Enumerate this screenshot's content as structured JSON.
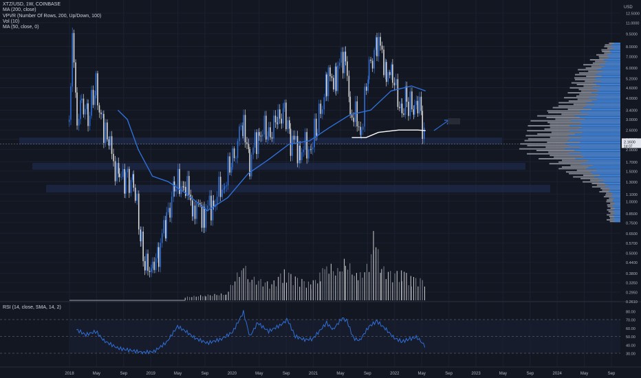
{
  "chart_data": {
    "type": "candlestick",
    "symbol": "XTZ/USD",
    "interval": "1W",
    "exchange": "COINBASE",
    "header": "XTZ/USD, 1W, COINBASE",
    "indicators": [
      "MA (200, close)",
      "VPVR (Number Of Rows, 200, Up/Down, 100)",
      "Vol (10)",
      "MA (50, close, 0)"
    ],
    "currency_label": "USD",
    "scale": "log",
    "price_axis_labels": [
      "12.5000",
      "11.0000",
      "9.5000",
      "8.0000",
      "7.0000",
      "6.0000",
      "5.2000",
      "4.6000",
      "4.0000",
      "3.4000",
      "3.0000",
      "2.6000",
      "2.3000",
      "2.0000",
      "1.7000",
      "1.5000",
      "1.3000",
      "1.1000",
      "1.0000",
      "0.8500",
      "0.7500",
      "0.6500",
      "0.5700",
      "0.5000",
      "0.4400",
      "0.3800",
      "0.3350",
      "0.2950",
      "0.2610"
    ],
    "last_price_label": "2.1600",
    "last_price_sublabel": "1d 07",
    "time_axis_labels": [
      "2018",
      "May",
      "Sep",
      "2019",
      "May",
      "Sep",
      "2020",
      "May",
      "Sep",
      "2021",
      "May",
      "Sep",
      "2022",
      "May",
      "Sep",
      "2023",
      "May",
      "Sep",
      "2024",
      "May",
      "Sep"
    ],
    "rsi_label": "RSI (14, close, SMA, 14, 2)",
    "rsi_axis_labels": [
      "80.00",
      "70.00",
      "60.00",
      "50.00",
      "40.00",
      "30.00"
    ],
    "rsi_levels": [
      70,
      50,
      30
    ],
    "price_series": [
      [
        "2017-12-31",
        2.6
      ],
      [
        "2018-01-07",
        4.5
      ],
      [
        "2018-01-14",
        11.0
      ],
      [
        "2018-01-21",
        6.0
      ],
      [
        "2018-02-04",
        3.0
      ],
      [
        "2018-02-25",
        4.0
      ],
      [
        "2018-03-25",
        3.0
      ],
      [
        "2018-04-29",
        4.6
      ],
      [
        "2018-06-03",
        2.6
      ],
      [
        "2018-07-01",
        2.0
      ],
      [
        "2018-08-12",
        1.3
      ],
      [
        "2018-09-09",
        1.4
      ],
      [
        "2018-10-14",
        1.3
      ],
      [
        "2018-11-18",
        0.55
      ],
      [
        "2018-12-09",
        0.4
      ],
      [
        "2019-01-06",
        0.44
      ],
      [
        "2019-02-03",
        0.5
      ],
      [
        "2019-03-10",
        0.8
      ],
      [
        "2019-04-14",
        1.2
      ],
      [
        "2019-05-26",
        1.3
      ],
      [
        "2019-07-07",
        0.95
      ],
      [
        "2019-08-25",
        0.85
      ],
      [
        "2019-10-06",
        1.0
      ],
      [
        "2019-11-24",
        1.3
      ],
      [
        "2019-12-29",
        1.7
      ],
      [
        "2020-02-16",
        3.0
      ],
      [
        "2020-03-15",
        1.7
      ],
      [
        "2020-04-26",
        2.6
      ],
      [
        "2020-06-07",
        2.5
      ],
      [
        "2020-07-19",
        2.9
      ],
      [
        "2020-08-16",
        3.6
      ],
      [
        "2020-09-13",
        2.3
      ],
      [
        "2020-10-25",
        2.0
      ],
      [
        "2020-12-13",
        2.1
      ],
      [
        "2021-01-10",
        2.7
      ],
      [
        "2021-02-21",
        5.0
      ],
      [
        "2021-04-04",
        5.5
      ],
      [
        "2021-05-16",
        7.5
      ],
      [
        "2021-06-06",
        3.4
      ],
      [
        "2021-07-25",
        2.7
      ],
      [
        "2021-08-29",
        5.8
      ],
      [
        "2021-10-03",
        8.8
      ],
      [
        "2021-11-14",
        6.0
      ],
      [
        "2021-12-12",
        5.0
      ],
      [
        "2022-01-23",
        3.4
      ],
      [
        "2022-02-13",
        3.9
      ],
      [
        "2022-03-20",
        3.2
      ],
      [
        "2022-04-03",
        4.0
      ],
      [
        "2022-04-24",
        2.9
      ],
      [
        "2022-05-08",
        2.16
      ]
    ],
    "ma50_series": [
      [
        "2018-08-05",
        3.4
      ],
      [
        "2018-09-16",
        3.0
      ],
      [
        "2018-11-04",
        2.0
      ],
      [
        "2019-01-06",
        1.4
      ],
      [
        "2019-03-17",
        1.3
      ],
      [
        "2019-06-09",
        1.1
      ],
      [
        "2019-09-08",
        0.88
      ],
      [
        "2019-12-08",
        1.05
      ],
      [
        "2020-03-08",
        1.45
      ],
      [
        "2020-06-07",
        1.75
      ],
      [
        "2020-09-06",
        2.15
      ],
      [
        "2020-12-06",
        2.25
      ],
      [
        "2021-03-07",
        2.7
      ],
      [
        "2021-06-06",
        3.2
      ],
      [
        "2021-09-05",
        3.4
      ],
      [
        "2021-12-05",
        4.4
      ],
      [
        "2022-03-06",
        4.7
      ],
      [
        "2022-05-08",
        4.4
      ]
    ],
    "ma200_series": [
      [
        "2021-06-13",
        2.35
      ],
      [
        "2021-08-15",
        2.35
      ],
      [
        "2021-10-10",
        2.52
      ],
      [
        "2022-01-09",
        2.6
      ],
      [
        "2022-04-03",
        2.6
      ],
      [
        "2022-05-08",
        2.58
      ]
    ],
    "volume_relative": [
      [
        "2019-06-01",
        0.05
      ],
      [
        "2019-09-01",
        0.08
      ],
      [
        "2019-12-01",
        0.1
      ],
      [
        "2020-02-16",
        0.55
      ],
      [
        "2020-03-15",
        0.35
      ],
      [
        "2020-05-03",
        0.3
      ],
      [
        "2020-06-21",
        0.25
      ],
      [
        "2020-08-16",
        0.45
      ],
      [
        "2020-10-04",
        0.35
      ],
      [
        "2020-12-13",
        0.25
      ],
      [
        "2021-01-24",
        0.4
      ],
      [
        "2021-02-21",
        0.55
      ],
      [
        "2021-04-11",
        0.45
      ],
      [
        "2021-05-16",
        0.6
      ],
      [
        "2021-07-11",
        0.35
      ],
      [
        "2021-08-29",
        0.55
      ],
      [
        "2021-09-19",
        1.0
      ],
      [
        "2021-10-24",
        0.5
      ],
      [
        "2021-12-12",
        0.4
      ],
      [
        "2022-01-23",
        0.45
      ],
      [
        "2022-03-06",
        0.35
      ],
      [
        "2022-05-08",
        0.3
      ]
    ],
    "rsi_series": [
      [
        "2018-02-01",
        58
      ],
      [
        "2018-03-15",
        52
      ],
      [
        "2018-04-29",
        56
      ],
      [
        "2018-06-03",
        45
      ],
      [
        "2018-08-05",
        36
      ],
      [
        "2018-09-16",
        34
      ],
      [
        "2018-11-25",
        31
      ],
      [
        "2019-01-13",
        32
      ],
      [
        "2019-03-10",
        43
      ],
      [
        "2019-04-28",
        62
      ],
      [
        "2019-06-09",
        55
      ],
      [
        "2019-07-14",
        48
      ],
      [
        "2019-09-08",
        42
      ],
      [
        "2019-11-10",
        47
      ],
      [
        "2019-12-29",
        55
      ],
      [
        "2020-02-16",
        79
      ],
      [
        "2020-03-15",
        50
      ],
      [
        "2020-04-19",
        66
      ],
      [
        "2020-06-07",
        56
      ],
      [
        "2020-08-02",
        64
      ],
      [
        "2020-08-30",
        70
      ],
      [
        "2020-10-04",
        50
      ],
      [
        "2020-11-15",
        46
      ],
      [
        "2020-12-20",
        47
      ],
      [
        "2021-02-07",
        62
      ],
      [
        "2021-02-21",
        66
      ],
      [
        "2021-03-21",
        58
      ],
      [
        "2021-05-02",
        72
      ],
      [
        "2021-05-23",
        68
      ],
      [
        "2021-06-20",
        48
      ],
      [
        "2021-07-18",
        45
      ],
      [
        "2021-08-29",
        62
      ],
      [
        "2021-10-03",
        68
      ],
      [
        "2021-11-14",
        58
      ],
      [
        "2021-12-19",
        48
      ],
      [
        "2022-01-23",
        44
      ],
      [
        "2022-02-27",
        47
      ],
      [
        "2022-03-27",
        49
      ],
      [
        "2022-04-10",
        46
      ],
      [
        "2022-05-08",
        38
      ]
    ]
  }
}
